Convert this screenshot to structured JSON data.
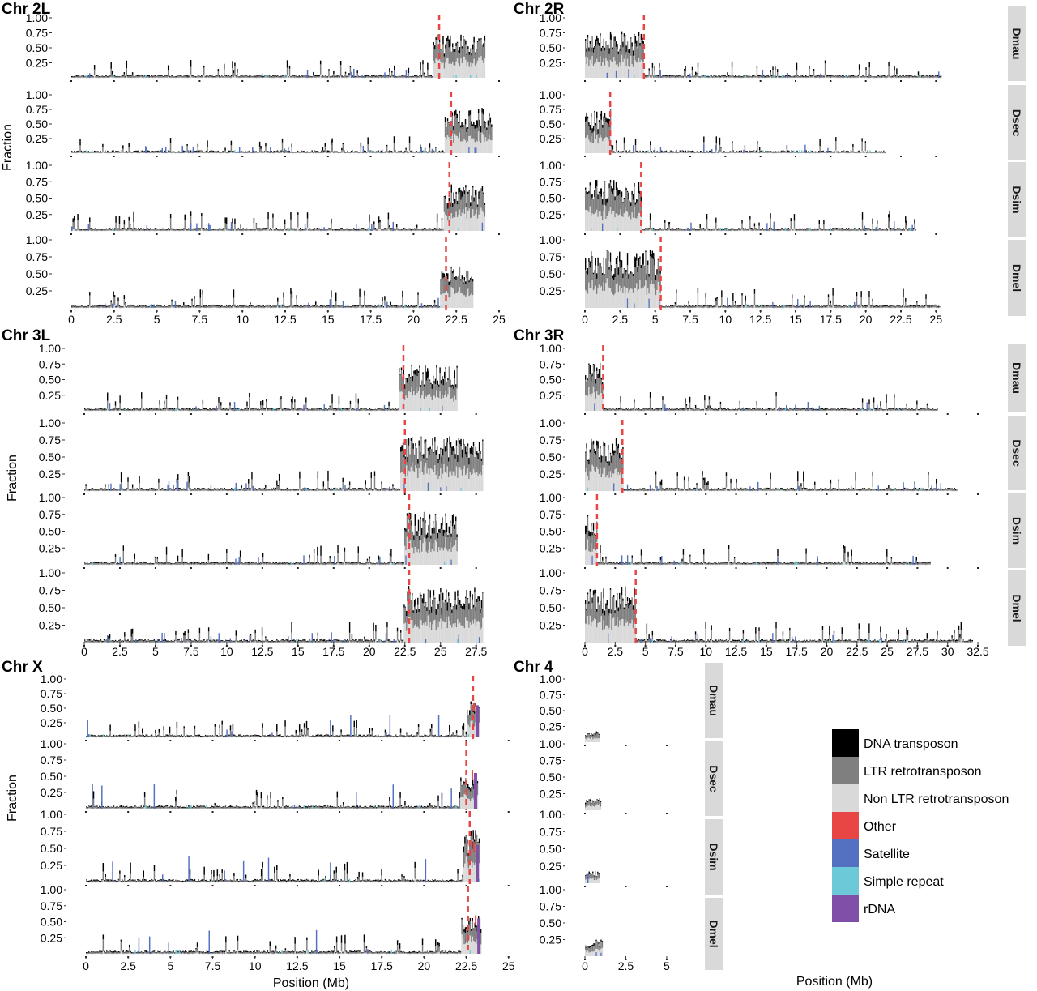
{
  "figure": {
    "y_axis_label": "Fraction",
    "x_axis_label": "Position (Mb)",
    "species": [
      "Dmau",
      "Dsec",
      "Dsim",
      "Dmel"
    ]
  },
  "legend": [
    {
      "label": "DNA transposon",
      "color": "#000000"
    },
    {
      "label": "LTR retrotransposon",
      "color": "#7f7f7f"
    },
    {
      "label": "Non LTR retrotransposon",
      "color": "#d9d9d9"
    },
    {
      "label": "Other",
      "color": "#e84545"
    },
    {
      "label": "Satellite",
      "color": "#5470c0"
    },
    {
      "label": "Simple repeat",
      "color": "#6ccad8"
    },
    {
      "label": "rDNA",
      "color": "#8050a8"
    }
  ],
  "chart_data": [
    {
      "type": "area",
      "title": "Chr 2L",
      "ylabel": "Fraction",
      "xlabel": "",
      "xlim": [
        0,
        25
      ],
      "ylim": [
        0,
        1
      ],
      "xticks": [
        "0",
        "2.5",
        "5",
        "7.5",
        "10",
        "12.5",
        "15",
        "17.5",
        "20",
        "22.5",
        "25"
      ],
      "yticks": [
        "0.25",
        "0.50",
        "0.75",
        "1.00"
      ],
      "series": [
        {
          "name": "Dmau",
          "length": 24.2,
          "boundary": 21.5,
          "het_side": "right",
          "het_level": 0.72
        },
        {
          "name": "Dsec",
          "length": 24.6,
          "boundary": 22.2,
          "het_side": "right",
          "het_level": 0.78
        },
        {
          "name": "Dsim",
          "length": 24.2,
          "boundary": 22.1,
          "het_side": "right",
          "het_level": 0.72
        },
        {
          "name": "Dmel",
          "length": 23.5,
          "boundary": 21.9,
          "het_side": "right",
          "het_level": 0.62
        }
      ]
    },
    {
      "type": "area",
      "title": "Chr 2R",
      "ylabel": "",
      "xlabel": "",
      "xlim": [
        0,
        25.5
      ],
      "ylim": [
        0,
        1
      ],
      "xticks": [
        "0",
        "2.5",
        "5",
        "7.5",
        "10",
        "12.5",
        "15",
        "17.5",
        "20",
        "22.5",
        "25"
      ],
      "yticks": [
        "0.25",
        "0.50",
        "0.75",
        "1.00"
      ],
      "series": [
        {
          "name": "Dmau",
          "length": 25.4,
          "boundary": 4.2,
          "het_side": "left",
          "het_level": 0.78
        },
        {
          "name": "Dsec",
          "length": 21.4,
          "boundary": 1.8,
          "het_side": "left",
          "het_level": 0.75
        },
        {
          "name": "Dsim",
          "length": 23.6,
          "boundary": 4.0,
          "het_side": "left",
          "het_level": 0.78
        },
        {
          "name": "Dmel",
          "length": 25.3,
          "boundary": 5.4,
          "het_side": "left",
          "het_level": 0.86
        }
      ]
    },
    {
      "type": "area",
      "title": "Chr 3L",
      "ylabel": "Fraction",
      "xlabel": "",
      "xlim": [
        0,
        28.2
      ],
      "ylim": [
        0,
        1
      ],
      "xticks": [
        "0",
        "2.5",
        "5",
        "7.5",
        "10",
        "12.5",
        "15",
        "17.5",
        "20",
        "22.5",
        "25",
        "27.5"
      ],
      "yticks": [
        "0.25",
        "0.50",
        "0.75",
        "1.00"
      ],
      "series": [
        {
          "name": "Dmau",
          "length": 26.2,
          "boundary": 22.4,
          "het_side": "right",
          "het_level": 0.75
        },
        {
          "name": "Dsec",
          "length": 28.0,
          "boundary": 22.5,
          "het_side": "right",
          "het_level": 0.82
        },
        {
          "name": "Dsim",
          "length": 26.2,
          "boundary": 22.8,
          "het_side": "right",
          "het_level": 0.78
        },
        {
          "name": "Dmel",
          "length": 28.0,
          "boundary": 22.8,
          "het_side": "right",
          "het_level": 0.82
        }
      ]
    },
    {
      "type": "area",
      "title": "Chr 3R",
      "ylabel": "",
      "xlabel": "",
      "xlim": [
        0,
        32.9
      ],
      "ylim": [
        0,
        1
      ],
      "xticks": [
        "0",
        "2.5",
        "5",
        "7.5",
        "10",
        "12.5",
        "15",
        "17.5",
        "20",
        "22.5",
        "25",
        "27.5",
        "30",
        "32.5"
      ],
      "yticks": [
        "0.25",
        "0.50",
        "0.75",
        "1.00"
      ],
      "series": [
        {
          "name": "Dmau",
          "length": 29.2,
          "boundary": 1.5,
          "het_side": "left",
          "het_level": 0.78
        },
        {
          "name": "Dsec",
          "length": 30.8,
          "boundary": 3.1,
          "het_side": "left",
          "het_level": 0.78
        },
        {
          "name": "Dsim",
          "length": 28.6,
          "boundary": 1.0,
          "het_side": "left",
          "het_level": 0.78
        },
        {
          "name": "Dmel",
          "length": 32.1,
          "boundary": 4.2,
          "het_side": "left",
          "het_level": 0.82
        }
      ]
    },
    {
      "type": "area",
      "title": "Chr X",
      "ylabel": "Fraction",
      "xlabel": "Position (Mb)",
      "xlim": [
        0,
        25.3
      ],
      "ylim": [
        0,
        1
      ],
      "xticks": [
        "0",
        "2.5",
        "5",
        "7.5",
        "10",
        "12.5",
        "15",
        "17.5",
        "20",
        "22.5",
        "25"
      ],
      "yticks": [
        "0.25",
        "0.50",
        "0.75",
        "1.00"
      ],
      "series": [
        {
          "name": "Dmau",
          "length": 23.3,
          "boundary": 22.9,
          "het_side": "right",
          "het_level": 0.65
        },
        {
          "name": "Dsec",
          "length": 23.2,
          "boundary": 22.5,
          "het_side": "right",
          "het_level": 0.5
        },
        {
          "name": "Dsim",
          "length": 23.3,
          "boundary": 22.7,
          "het_side": "right",
          "het_level": 0.78
        },
        {
          "name": "Dmel",
          "length": 23.4,
          "boundary": 22.6,
          "het_side": "right",
          "het_level": 0.6
        }
      ]
    },
    {
      "type": "area",
      "title": "Chr 4",
      "ylabel": "",
      "xlabel": "Position (Mb)",
      "xlim": [
        0,
        5.25
      ],
      "ylim": [
        0,
        1
      ],
      "xticks": [
        "0",
        "2.5",
        "5"
      ],
      "yticks": [
        "0.25",
        "0.50",
        "0.75",
        "1.00"
      ],
      "series": [
        {
          "name": "Dmau",
          "length": 0.9,
          "boundary": null,
          "het_side": "none",
          "het_level": 0.18
        },
        {
          "name": "Dsec",
          "length": 1.0,
          "boundary": null,
          "het_side": "none",
          "het_level": 0.18
        },
        {
          "name": "Dsim",
          "length": 0.9,
          "boundary": null,
          "het_side": "none",
          "het_level": 0.18
        },
        {
          "name": "Dmel",
          "length": 1.1,
          "boundary": null,
          "het_side": "none",
          "het_level": 0.25
        }
      ]
    }
  ]
}
